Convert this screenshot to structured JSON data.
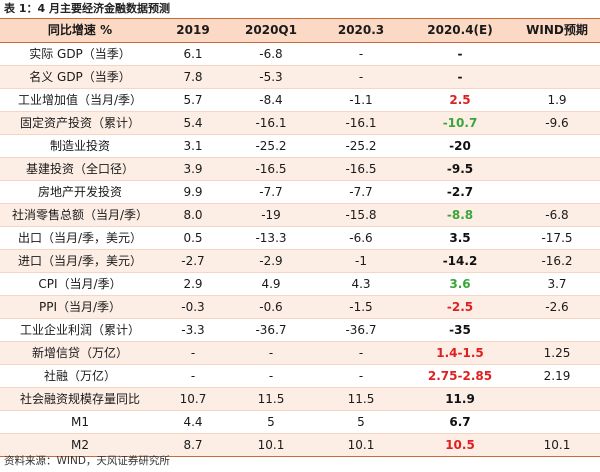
{
  "caption": "表 1：4 月主要经济金融数据预测",
  "headers": [
    "同比增速 %",
    "2019",
    "2020Q1",
    "2020.3",
    "2020.4(E)",
    "WIND预期"
  ],
  "rows": [
    {
      "label": "实际 GDP（当季）",
      "v2019": "6.1",
      "q1": "-6.8",
      "m3": "-",
      "e": "-",
      "e_color": "black",
      "wind": ""
    },
    {
      "label": "名义 GDP（当季）",
      "v2019": "7.8",
      "q1": "-5.3",
      "m3": "-",
      "e": "-",
      "e_color": "black",
      "wind": ""
    },
    {
      "label": "工业增加值（当月/季）",
      "v2019": "5.7",
      "q1": "-8.4",
      "m3": "-1.1",
      "e": "2.5",
      "e_color": "red",
      "wind": "1.9"
    },
    {
      "label": "固定资产投资（累计）",
      "v2019": "5.4",
      "q1": "-16.1",
      "m3": "-16.1",
      "e": "-10.7",
      "e_color": "green",
      "wind": "-9.6"
    },
    {
      "label": "制造业投资",
      "v2019": "3.1",
      "q1": "-25.2",
      "m3": "-25.2",
      "e": "-20",
      "e_color": "black",
      "wind": ""
    },
    {
      "label": "基建投资（全口径）",
      "v2019": "3.9",
      "q1": "-16.5",
      "m3": "-16.5",
      "e": "-9.5",
      "e_color": "black",
      "wind": ""
    },
    {
      "label": "房地产开发投资",
      "v2019": "9.9",
      "q1": "-7.7",
      "m3": "-7.7",
      "e": "-2.7",
      "e_color": "black",
      "wind": ""
    },
    {
      "label": "社消零售总额（当月/季）",
      "v2019": "8.0",
      "q1": "-19",
      "m3": "-15.8",
      "e": "-8.8",
      "e_color": "green",
      "wind": "-6.8"
    },
    {
      "label": "出口（当月/季，美元）",
      "v2019": "0.5",
      "q1": "-13.3",
      "m3": "-6.6",
      "e": "3.5",
      "e_color": "black",
      "wind": "-17.5"
    },
    {
      "label": "进口（当月/季，美元）",
      "v2019": "-2.7",
      "q1": "-2.9",
      "m3": "-1",
      "e": "-14.2",
      "e_color": "black",
      "wind": "-16.2"
    },
    {
      "label": "CPI（当月/季）",
      "v2019": "2.9",
      "q1": "4.9",
      "m3": "4.3",
      "e": "3.6",
      "e_color": "green",
      "wind": "3.7"
    },
    {
      "label": "PPI（当月/季）",
      "v2019": "-0.3",
      "q1": "-0.6",
      "m3": "-1.5",
      "e": "-2.5",
      "e_color": "red",
      "wind": "-2.6"
    },
    {
      "label": "工业企业利润（累计）",
      "v2019": "-3.3",
      "q1": "-36.7",
      "m3": "-36.7",
      "e": "-35",
      "e_color": "black",
      "wind": ""
    },
    {
      "label": "新增信贷（万亿）",
      "v2019": "-",
      "q1": "-",
      "m3": "-",
      "e": "1.4-1.5",
      "e_color": "red",
      "wind": "1.25"
    },
    {
      "label": "社融（万亿）",
      "v2019": "-",
      "q1": "-",
      "m3": "-",
      "e": "2.75-2.85",
      "e_color": "red",
      "wind": "2.19"
    },
    {
      "label": "社会融资规模存量同比",
      "v2019": "10.7",
      "q1": "11.5",
      "m3": "11.5",
      "e": "11.9",
      "e_color": "black",
      "wind": ""
    },
    {
      "label": "M1",
      "v2019": "4.4",
      "q1": "5",
      "m3": "5",
      "e": "6.7",
      "e_color": "black",
      "wind": ""
    },
    {
      "label": "M2",
      "v2019": "8.7",
      "q1": "10.1",
      "m3": "10.1",
      "e": "10.5",
      "e_color": "red",
      "wind": "10.1"
    }
  ],
  "source": "资料来源：WIND，天风证券研究所"
}
